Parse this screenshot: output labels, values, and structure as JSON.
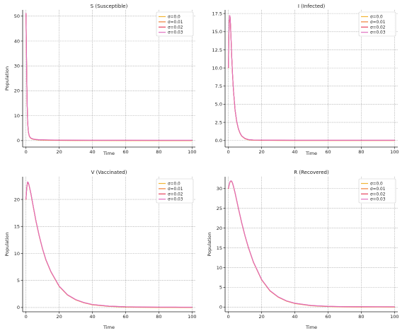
{
  "chart_data": [
    {
      "type": "line",
      "title": "S (Susceptible)",
      "xlabel": "Time",
      "ylabel": "Population",
      "xlim": [
        -2,
        102
      ],
      "ylim": [
        -2.6,
        52.5
      ],
      "xticks": [
        0,
        20,
        40,
        60,
        80,
        100
      ],
      "yticks": [
        0,
        10,
        20,
        30,
        40,
        50
      ],
      "legend_position": "top-right",
      "grid": true,
      "series": [
        {
          "name": "σ=0.0",
          "color": "#f2b535"
        },
        {
          "name": "σ=0.01",
          "color": "#ef7f38"
        },
        {
          "name": "σ=0.02",
          "color": "#e8415c"
        },
        {
          "name": "σ=0.03",
          "color": "#e070c0"
        }
      ],
      "x": [
        0,
        0.25,
        0.5,
        0.75,
        1,
        1.25,
        1.5,
        2,
        2.5,
        3,
        4,
        5,
        6,
        8,
        10,
        15,
        20,
        30,
        40,
        60,
        80,
        100
      ],
      "values": [
        51,
        38,
        24,
        14,
        8,
        5,
        3.2,
        1.8,
        1.2,
        0.9,
        0.6,
        0.45,
        0.35,
        0.25,
        0.2,
        0.12,
        0.08,
        0.05,
        0.03,
        0.02,
        0.01,
        0.01
      ]
    },
    {
      "type": "line",
      "title": "I (Infected)",
      "xlabel": "Time",
      "ylabel": "",
      "xlim": [
        -2,
        102
      ],
      "ylim": [
        -0.9,
        18.0
      ],
      "xticks": [
        0,
        20,
        40,
        60,
        80,
        100
      ],
      "yticks": [
        0.0,
        2.5,
        5.0,
        7.5,
        10.0,
        12.5,
        15.0,
        17.5
      ],
      "ytick_labels": [
        "0.0",
        "2.5",
        "5.0",
        "7.5",
        "10.0",
        "12.5",
        "15.0",
        "17.5"
      ],
      "legend_position": "top-right",
      "grid": true,
      "series": [
        {
          "name": "σ=0.0",
          "color": "#f2b535"
        },
        {
          "name": "σ=0.01",
          "color": "#ef7f38"
        },
        {
          "name": "σ=0.02",
          "color": "#e8415c"
        },
        {
          "name": "σ=0.03",
          "color": "#e070c0"
        }
      ],
      "x": [
        0,
        0.25,
        0.5,
        0.75,
        1,
        1.25,
        1.5,
        2,
        2.5,
        3,
        4,
        5,
        6,
        7,
        8,
        10,
        12,
        15,
        20,
        30,
        40,
        60,
        80,
        100
      ],
      "values": [
        10,
        14,
        16.5,
        17.2,
        17.0,
        16.0,
        14.5,
        11.5,
        9.0,
        7.0,
        4.2,
        2.6,
        1.6,
        1.0,
        0.6,
        0.25,
        0.1,
        0.04,
        0.02,
        0.01,
        0,
        0,
        0,
        0
      ]
    },
    {
      "type": "line",
      "title": "V (Vaccinated)",
      "xlabel": "Time",
      "ylabel": "Population",
      "xlim": [
        -2,
        102
      ],
      "ylim": [
        -0.8,
        24.2
      ],
      "xticks": [
        0,
        20,
        40,
        60,
        80,
        100
      ],
      "yticks": [
        0,
        5,
        10,
        15,
        20
      ],
      "legend_position": "top-right",
      "grid": true,
      "series": [
        {
          "name": "σ=0.0",
          "color": "#f2b535"
        },
        {
          "name": "σ=0.01",
          "color": "#ef7f38"
        },
        {
          "name": "σ=0.02",
          "color": "#e8415c"
        },
        {
          "name": "σ=0.03",
          "color": "#e070c0"
        }
      ],
      "x": [
        0,
        0.5,
        1,
        1.5,
        2,
        3,
        4,
        6,
        8,
        10,
        12,
        15,
        20,
        25,
        30,
        35,
        40,
        50,
        60,
        70,
        80,
        90,
        100
      ],
      "values": [
        20,
        22.2,
        23.2,
        23.0,
        22.4,
        21.0,
        19.3,
        16.0,
        13.2,
        10.8,
        8.8,
        6.6,
        3.9,
        2.3,
        1.4,
        0.85,
        0.5,
        0.2,
        0.08,
        0.03,
        0.01,
        0.01,
        0
      ]
    },
    {
      "type": "line",
      "title": "R (Recovered)",
      "xlabel": "Time",
      "ylabel": "Population",
      "xlim": [
        -2,
        102
      ],
      "ylim": [
        -1.2,
        33.0
      ],
      "xticks": [
        0,
        20,
        40,
        60,
        80,
        100
      ],
      "yticks": [
        0,
        5,
        10,
        15,
        20,
        25,
        30
      ],
      "legend_position": "top-right",
      "grid": true,
      "series": [
        {
          "name": "σ=0.0",
          "color": "#f2b535"
        },
        {
          "name": "σ=0.01",
          "color": "#ef7f38"
        },
        {
          "name": "σ=0.02",
          "color": "#e8415c"
        },
        {
          "name": "σ=0.03",
          "color": "#e070c0"
        }
      ],
      "x": [
        0,
        0.5,
        1,
        1.5,
        2,
        2.5,
        3,
        4,
        6,
        8,
        10,
        12,
        15,
        20,
        25,
        30,
        35,
        40,
        50,
        60,
        70,
        80,
        90,
        100
      ],
      "values": [
        30,
        31.0,
        31.7,
        31.9,
        31.8,
        31.3,
        30.6,
        28.9,
        25.0,
        21.3,
        18.0,
        15.1,
        11.4,
        6.9,
        4.1,
        2.5,
        1.5,
        0.9,
        0.32,
        0.12,
        0.04,
        0.02,
        0.01,
        0
      ]
    }
  ]
}
